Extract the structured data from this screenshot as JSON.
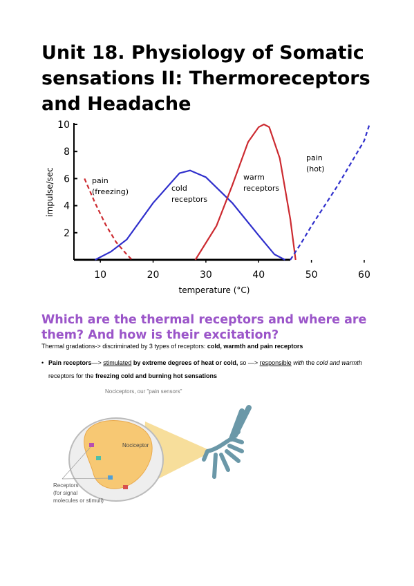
{
  "header": {
    "title": "Unit 18. Physiology of Somatic sensations II: Thermoreceptors and Headache"
  },
  "chart_data": {
    "type": "line",
    "x_label": "temperature (°C)",
    "y_label": "impulse/sec",
    "xlim": [
      5,
      61
    ],
    "ylim": [
      0,
      10
    ],
    "xticks": [
      10,
      20,
      30,
      40,
      50,
      60
    ],
    "yticks": [
      2,
      4,
      6,
      8,
      10
    ],
    "series": [
      {
        "name": "pain (freezing)",
        "color": "#cc2a30",
        "dash": true,
        "x": [
          7,
          9,
          11,
          13,
          15,
          16
        ],
        "values": [
          6,
          4.2,
          2.6,
          1.3,
          0.4,
          0
        ]
      },
      {
        "name": "cold receptors",
        "color": "#2f2fcc",
        "dash": false,
        "x": [
          9,
          12,
          15,
          20,
          25,
          27,
          30,
          35,
          40,
          43,
          45
        ],
        "values": [
          0,
          0.6,
          1.5,
          4.2,
          6.4,
          6.6,
          6.1,
          4.2,
          1.8,
          0.4,
          0
        ]
      },
      {
        "name": "warm receptors",
        "color": "#cc2a30",
        "dash": false,
        "x": [
          28,
          32,
          35,
          38,
          40,
          41,
          42,
          44,
          46,
          47
        ],
        "values": [
          0,
          2.5,
          5.5,
          8.7,
          9.8,
          10,
          9.8,
          7.5,
          3,
          0
        ]
      },
      {
        "name": "pain (hot)",
        "color": "#2f2fcc",
        "dash": true,
        "x": [
          46,
          48,
          50,
          55,
          60,
          61
        ],
        "values": [
          0,
          1.2,
          2.5,
          5.5,
          8.8,
          10
        ]
      }
    ]
  },
  "section": {
    "heading": "Which are the thermal receptors and where are them? And how is their excitation?",
    "paragraph": {
      "runs": [
        "Thermal gradations-> discriminated by 3 types of receptors: ",
        "cold, warmth and pain receptors"
      ]
    },
    "bullet": {
      "runs": [
        "Pain receptors",
        "—> ",
        "stimulated",
        " by extreme degrees of heat or cold,",
        " so —> ",
        "responsible",
        " with",
        " the ",
        "cold",
        " and ",
        "warmth",
        " receptors for the ",
        "freezing cold and burning hot sensations"
      ]
    }
  },
  "figure": {
    "caption": "Nociceptors, our \"pain sensors\"",
    "cell_label": "Nociceptor",
    "receptor_label": [
      "Receptors",
      "(for signal",
      "molecules or stimuli)"
    ]
  }
}
